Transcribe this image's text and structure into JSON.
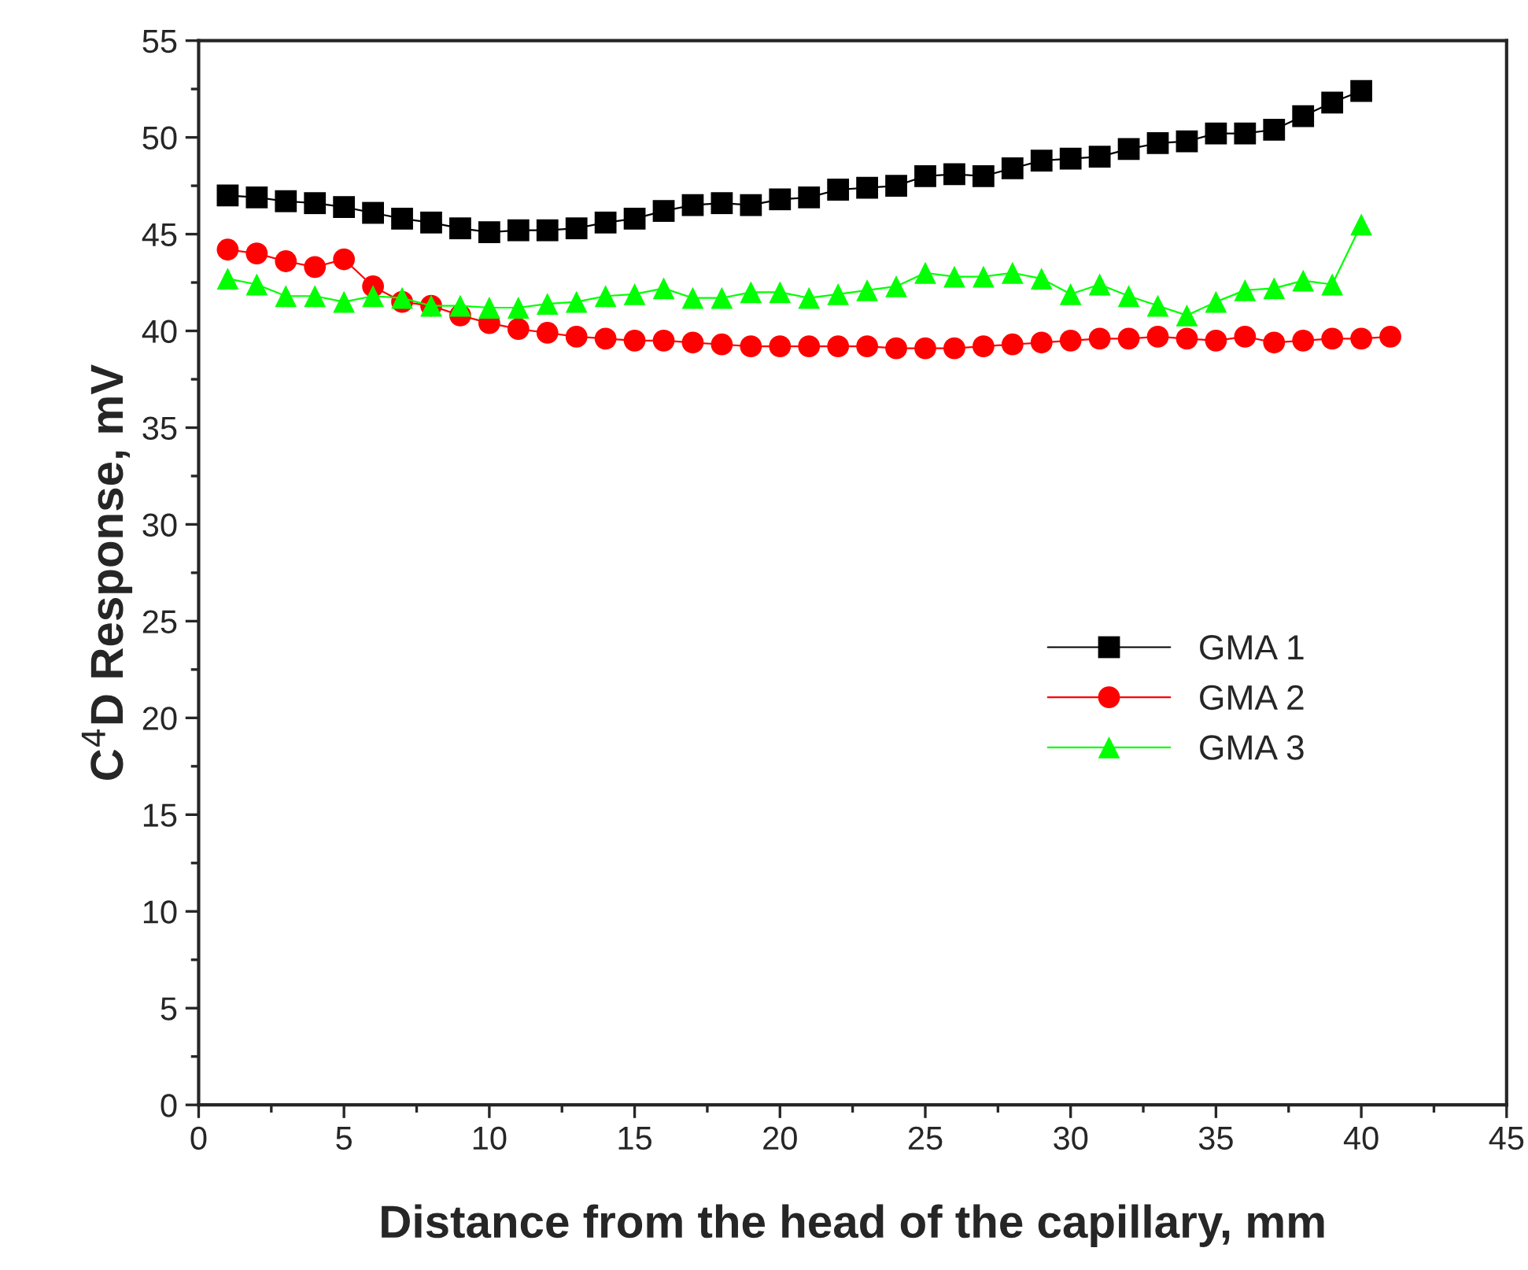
{
  "chart_data": {
    "type": "line",
    "xlabel": "Distance from the head of the capillary, mm",
    "ylabel": "C$^{4}$D Response, mV",
    "x": [
      1,
      2,
      3,
      4,
      5,
      6,
      7,
      8,
      9,
      10,
      11,
      12,
      13,
      14,
      15,
      16,
      17,
      18,
      19,
      20,
      21,
      22,
      23,
      24,
      25,
      26,
      27,
      28,
      29,
      30,
      31,
      32,
      33,
      34,
      35,
      36,
      37,
      38,
      39,
      40
    ],
    "series": [
      {
        "name": "GMA 1",
        "color": "#000000",
        "marker": "square",
        "values": [
          47.0,
          46.9,
          46.7,
          46.6,
          46.4,
          46.1,
          45.8,
          45.6,
          45.3,
          45.1,
          45.2,
          45.2,
          45.3,
          45.6,
          45.8,
          46.2,
          46.5,
          46.6,
          46.5,
          46.8,
          46.9,
          47.3,
          47.4,
          47.5,
          48.0,
          48.1,
          48.0,
          48.4,
          48.8,
          48.9,
          49.0,
          49.4,
          49.7,
          49.8,
          50.2,
          50.2,
          50.4,
          51.1,
          51.8,
          52.4
        ]
      },
      {
        "name": "GMA 2",
        "color": "#ff0000",
        "marker": "circle",
        "x": [
          1,
          2,
          3,
          4,
          5,
          6,
          7,
          8,
          9,
          10,
          11,
          12,
          13,
          14,
          15,
          16,
          17,
          18,
          19,
          20,
          21,
          22,
          23,
          24,
          25,
          26,
          27,
          28,
          29,
          30,
          31,
          32,
          33,
          34,
          35,
          36,
          37,
          38,
          39,
          40,
          41
        ],
        "values": [
          44.2,
          44.0,
          43.6,
          43.3,
          43.7,
          42.3,
          41.5,
          41.3,
          40.8,
          40.4,
          40.1,
          39.9,
          39.7,
          39.6,
          39.5,
          39.5,
          39.4,
          39.3,
          39.2,
          39.2,
          39.2,
          39.2,
          39.2,
          39.1,
          39.1,
          39.1,
          39.2,
          39.3,
          39.4,
          39.5,
          39.6,
          39.6,
          39.7,
          39.6,
          39.5,
          39.7,
          39.4,
          39.5,
          39.6,
          39.6,
          39.7
        ]
      },
      {
        "name": "GMA 3",
        "color": "#00ff00",
        "marker": "triangle",
        "values": [
          42.7,
          42.4,
          41.8,
          41.8,
          41.5,
          41.8,
          41.7,
          41.3,
          41.3,
          41.2,
          41.2,
          41.4,
          41.5,
          41.8,
          41.9,
          42.2,
          41.7,
          41.7,
          42.0,
          42.0,
          41.7,
          41.9,
          42.1,
          42.3,
          43.0,
          42.8,
          42.8,
          43.0,
          42.7,
          41.9,
          42.4,
          41.8,
          41.3,
          40.8,
          41.5,
          42.1,
          42.2,
          42.6,
          42.4,
          45.5
        ]
      }
    ],
    "xlim": [
      0,
      45
    ],
    "xticks": [
      0,
      5,
      10,
      15,
      20,
      25,
      30,
      35,
      40,
      45
    ],
    "ylim": [
      0,
      55
    ],
    "yticks": [
      0,
      5,
      10,
      15,
      20,
      25,
      30,
      35,
      40,
      45,
      50,
      55
    ],
    "line_style": "solid",
    "legend": "right",
    "grid": false
  }
}
